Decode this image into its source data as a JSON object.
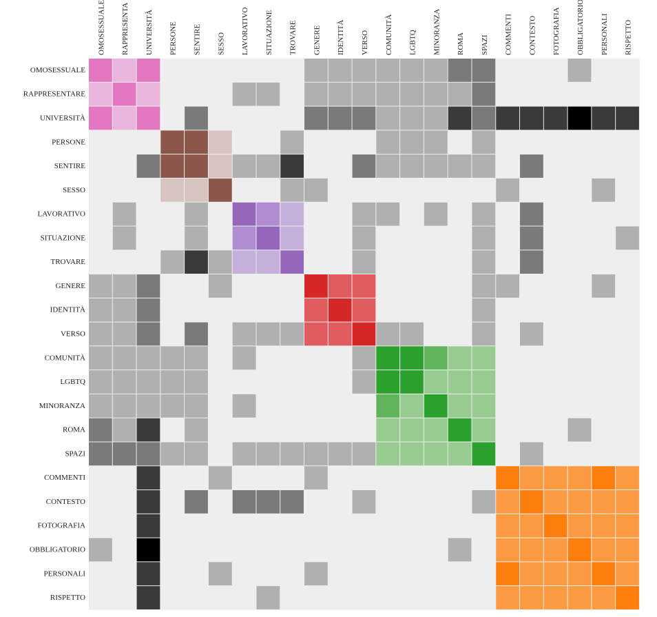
{
  "chart_data": {
    "type": "heatmap",
    "title": "",
    "xlabel": "",
    "ylabel": "",
    "labels": [
      "OMOSESSUALE",
      "RAPPRESENTARE",
      "UNIVERSITÀ",
      "PERSONE",
      "SENTIRE",
      "SESSO",
      "LAVORATIVO",
      "SITUAZIONE",
      "TROVARE",
      "GENERE",
      "IDENTITÀ",
      "VERSO",
      "COMUNITÀ",
      "LGBTQ",
      "MINORANZA",
      "ROMA",
      "SPAZI",
      "COMMENTI",
      "CONTESTO",
      "FOTOGRAFIA",
      "OBBLIGATORIO",
      "PERSONALI",
      "RISPETTO"
    ],
    "column_labels_display": [
      "OMOSESSUALE",
      "RAPPRESENTA",
      "UNIVERSITÀ",
      "PERSONE",
      "SENTIRE",
      "SESSO",
      "LAVORATIVO",
      "SITUAZIONE",
      "TROVARE",
      "GENERE",
      "IDENTITÀ",
      "VERSO",
      "COMUNITÀ",
      "LGBTQ",
      "MINORANZA",
      "ROMA",
      "SPAZI",
      "COMMENTI",
      "CONTESTO",
      "FOTOGRAFIA",
      "OBBLIGATORIO",
      "PERSONALI",
      "RISPETTO"
    ],
    "legend": {
      "0": "#eeeeee",
      "g1": "#b0b0b0",
      "g2": "#7a7a7a",
      "g3": "#3a3a3a",
      "g4": "#000000",
      "p1": "#eab4dc",
      "p2": "#e377c2",
      "b1": "#d7c4c1",
      "b2": "#8c564b",
      "v1": "#c5b0dc",
      "v2": "#b08cd0",
      "v3": "#9467bd",
      "r1": "#e05c5e",
      "r2": "#d62728",
      "e1": "#98cb90",
      "e2": "#60b35a",
      "e3": "#2ca02c",
      "o1": "#fd9a42",
      "o2": "#ff7f0e"
    },
    "matrix": [
      [
        "p2",
        "p1",
        "p2",
        "0",
        "0",
        "0",
        "0",
        "0",
        "0",
        "g1",
        "g1",
        "g1",
        "g1",
        "g1",
        "g1",
        "g2",
        "g2",
        "0",
        "0",
        "0",
        "g1",
        "0",
        "0"
      ],
      [
        "p1",
        "p2",
        "p1",
        "0",
        "0",
        "0",
        "g1",
        "g1",
        "0",
        "g1",
        "g1",
        "g1",
        "g1",
        "g1",
        "g1",
        "g1",
        "g2",
        "0",
        "0",
        "0",
        "0",
        "0",
        "0"
      ],
      [
        "p2",
        "p1",
        "p2",
        "0",
        "g2",
        "0",
        "0",
        "0",
        "0",
        "g2",
        "g2",
        "g2",
        "g1",
        "g1",
        "g1",
        "g3",
        "g2",
        "g3",
        "g3",
        "g3",
        "g4",
        "g3",
        "g3"
      ],
      [
        "0",
        "0",
        "0",
        "b2",
        "b2",
        "b1",
        "0",
        "0",
        "g1",
        "0",
        "0",
        "0",
        "g1",
        "g1",
        "g1",
        "0",
        "g1",
        "0",
        "0",
        "0",
        "0",
        "0",
        "0"
      ],
      [
        "0",
        "0",
        "g2",
        "b2",
        "b2",
        "b1",
        "g1",
        "g1",
        "g3",
        "0",
        "0",
        "g2",
        "g1",
        "g1",
        "g1",
        "g1",
        "g1",
        "0",
        "g2",
        "0",
        "0",
        "0",
        "0"
      ],
      [
        "0",
        "0",
        "0",
        "b1",
        "b1",
        "b2",
        "0",
        "0",
        "g1",
        "g1",
        "0",
        "0",
        "0",
        "0",
        "0",
        "0",
        "0",
        "g1",
        "0",
        "0",
        "0",
        "g1",
        "0"
      ],
      [
        "0",
        "g1",
        "0",
        "0",
        "g1",
        "0",
        "v3",
        "v2",
        "v1",
        "0",
        "0",
        "g1",
        "g1",
        "0",
        "g1",
        "0",
        "g1",
        "0",
        "g2",
        "0",
        "0",
        "0",
        "0"
      ],
      [
        "0",
        "g1",
        "0",
        "0",
        "g1",
        "0",
        "v2",
        "v3",
        "v1",
        "0",
        "0",
        "g1",
        "0",
        "0",
        "0",
        "0",
        "g1",
        "0",
        "g2",
        "0",
        "0",
        "0",
        "g1"
      ],
      [
        "0",
        "0",
        "0",
        "g1",
        "g3",
        "g1",
        "v1",
        "v1",
        "v3",
        "0",
        "0",
        "g1",
        "0",
        "0",
        "0",
        "0",
        "g1",
        "0",
        "g2",
        "0",
        "0",
        "0",
        "0"
      ],
      [
        "g1",
        "g1",
        "g2",
        "0",
        "0",
        "g1",
        "0",
        "0",
        "0",
        "r2",
        "r1",
        "r1",
        "0",
        "0",
        "0",
        "0",
        "g1",
        "g1",
        "0",
        "0",
        "0",
        "g1",
        "0"
      ],
      [
        "g1",
        "g1",
        "g2",
        "0",
        "0",
        "0",
        "0",
        "0",
        "0",
        "r1",
        "r2",
        "r1",
        "0",
        "0",
        "0",
        "0",
        "g1",
        "0",
        "0",
        "0",
        "0",
        "0",
        "0"
      ],
      [
        "g1",
        "g1",
        "g2",
        "0",
        "g2",
        "0",
        "g1",
        "g1",
        "g1",
        "r1",
        "r1",
        "r2",
        "g1",
        "g1",
        "0",
        "0",
        "g1",
        "0",
        "g1",
        "0",
        "0",
        "0",
        "0"
      ],
      [
        "g1",
        "g1",
        "g1",
        "g1",
        "g1",
        "0",
        "g1",
        "0",
        "0",
        "0",
        "0",
        "g1",
        "e3",
        "e3",
        "e2",
        "e1",
        "e1",
        "0",
        "0",
        "0",
        "0",
        "0",
        "0"
      ],
      [
        "g1",
        "g1",
        "g1",
        "g1",
        "g1",
        "0",
        "0",
        "0",
        "0",
        "0",
        "0",
        "g1",
        "e3",
        "e3",
        "e1",
        "e1",
        "e1",
        "0",
        "0",
        "0",
        "0",
        "0",
        "0"
      ],
      [
        "g1",
        "g1",
        "g1",
        "g1",
        "g1",
        "0",
        "g1",
        "0",
        "0",
        "0",
        "0",
        "0",
        "e2",
        "e1",
        "e3",
        "e1",
        "e1",
        "0",
        "0",
        "0",
        "0",
        "0",
        "0"
      ],
      [
        "g2",
        "g1",
        "g3",
        "0",
        "g1",
        "0",
        "0",
        "0",
        "0",
        "0",
        "0",
        "0",
        "e1",
        "e1",
        "e1",
        "e3",
        "e1",
        "0",
        "0",
        "0",
        "g1",
        "0",
        "0"
      ],
      [
        "g2",
        "g2",
        "g2",
        "g1",
        "g1",
        "0",
        "g1",
        "g1",
        "g1",
        "g1",
        "g1",
        "g1",
        "e1",
        "e1",
        "e1",
        "e1",
        "e3",
        "0",
        "g1",
        "0",
        "0",
        "0",
        "0"
      ],
      [
        "0",
        "0",
        "g3",
        "0",
        "0",
        "g1",
        "0",
        "0",
        "0",
        "g1",
        "0",
        "0",
        "0",
        "0",
        "0",
        "0",
        "0",
        "o2",
        "o1",
        "o1",
        "o1",
        "o2",
        "o1"
      ],
      [
        "0",
        "0",
        "g3",
        "0",
        "g2",
        "0",
        "g2",
        "g2",
        "g2",
        "0",
        "0",
        "g1",
        "0",
        "0",
        "0",
        "0",
        "g1",
        "o1",
        "o2",
        "o1",
        "o1",
        "o1",
        "o1"
      ],
      [
        "0",
        "0",
        "g3",
        "0",
        "0",
        "0",
        "0",
        "0",
        "0",
        "0",
        "0",
        "0",
        "0",
        "0",
        "0",
        "0",
        "0",
        "o1",
        "o1",
        "o2",
        "o1",
        "o1",
        "o1"
      ],
      [
        "g1",
        "0",
        "g4",
        "0",
        "0",
        "0",
        "0",
        "0",
        "0",
        "0",
        "0",
        "0",
        "0",
        "0",
        "0",
        "g1",
        "0",
        "o1",
        "o1",
        "o1",
        "o2",
        "o1",
        "o1"
      ],
      [
        "0",
        "0",
        "g3",
        "0",
        "0",
        "g1",
        "0",
        "0",
        "0",
        "g1",
        "0",
        "0",
        "0",
        "0",
        "0",
        "0",
        "0",
        "o2",
        "o1",
        "o1",
        "o1",
        "o2",
        "o1"
      ],
      [
        "0",
        "0",
        "g3",
        "0",
        "0",
        "0",
        "0",
        "g1",
        "0",
        "0",
        "0",
        "0",
        "0",
        "0",
        "0",
        "0",
        "0",
        "o1",
        "o1",
        "o1",
        "o1",
        "o1",
        "o2"
      ]
    ]
  }
}
